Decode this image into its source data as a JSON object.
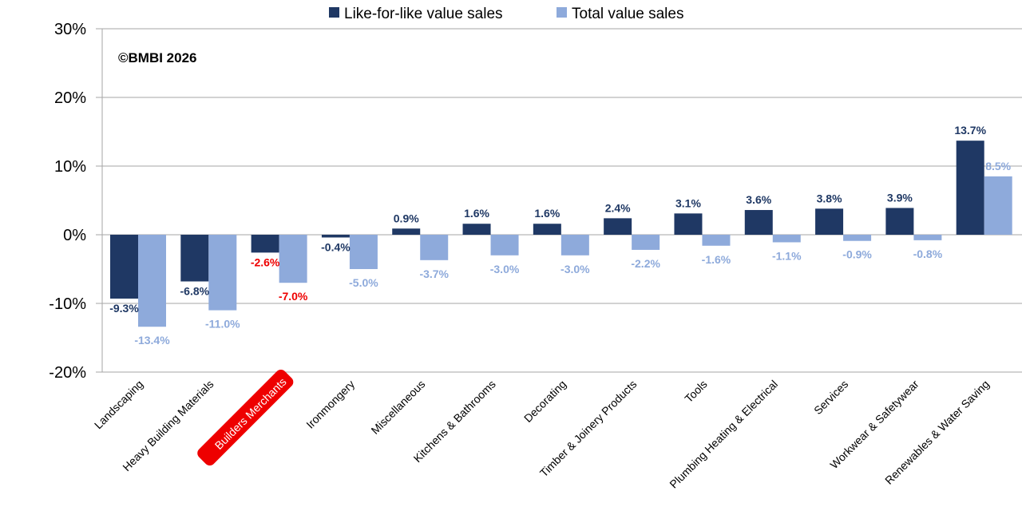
{
  "chart_data": {
    "type": "bar",
    "title": "",
    "xlabel": "",
    "ylabel": "",
    "ylim": [
      -20,
      30
    ],
    "yticks": [
      -20,
      -10,
      0,
      10,
      20,
      30
    ],
    "ytick_labels": [
      "-20%",
      "-10%",
      "0%",
      "10%",
      "20%",
      "30%"
    ],
    "grid": true,
    "legend_position": "top-center",
    "annotation": "©BMBI 2026",
    "highlighted_category": "Builders Merchants",
    "categories": [
      "Landscaping",
      "Heavy Building Materials",
      "Builders Merchants",
      "Ironmongery",
      "Miscellaneous",
      "Kitchens & Bathrooms",
      "Decorating",
      "Timber & Joinery Products",
      "Tools",
      "Plumbing Heating & Electrical",
      "Services",
      "Workwear & Safetywear",
      "Renewables & Water Saving"
    ],
    "series": [
      {
        "name": "Like-for-like value sales",
        "color": "#1f3864",
        "values": [
          -9.3,
          -6.8,
          -2.6,
          -0.4,
          0.9,
          1.6,
          1.6,
          2.4,
          3.1,
          3.6,
          3.8,
          3.9,
          13.7
        ],
        "labels": [
          "-9.3%",
          "-6.8%",
          "-2.6%",
          "-0.4%",
          "0.9%",
          "1.6%",
          "1.6%",
          "2.4%",
          "3.1%",
          "3.6%",
          "3.8%",
          "3.9%",
          "13.7%"
        ]
      },
      {
        "name": "Total value sales",
        "color": "#8eaadb",
        "values": [
          -13.4,
          -11.0,
          -7.0,
          -5.0,
          -3.7,
          -3.0,
          -3.0,
          -2.2,
          -1.6,
          -1.1,
          -0.9,
          -0.8,
          8.5
        ],
        "labels": [
          "-13.4%",
          "-11.0%",
          "-7.0%",
          "-5.0%",
          "-3.7%",
          "-3.0%",
          "-3.0%",
          "-2.2%",
          "-1.6%",
          "-1.1%",
          "-0.9%",
          "-0.8%",
          "8.5%"
        ]
      }
    ],
    "highlight_color": "#ee0000"
  }
}
